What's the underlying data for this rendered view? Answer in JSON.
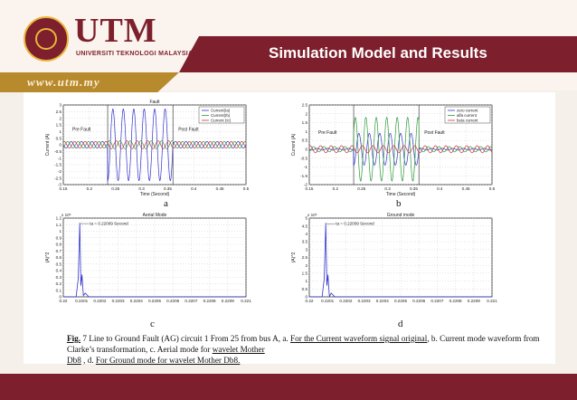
{
  "header": {
    "logo_text": "UTM",
    "logo_subtitle": "UNIVERSITI TEKNOLOGI MALAYSIA",
    "url": "www.utm.my",
    "slide_title": "Simulation Model and  Results"
  },
  "colors": {
    "maroon": "#7d1f2c",
    "gold": "#b88a2e",
    "blue": "#3333cc",
    "green": "#2e9a3a",
    "red": "#cc3333"
  },
  "subfigure_labels": [
    "a",
    "b",
    "c",
    "d"
  ],
  "caption": {
    "fig": "Fig.",
    "p1": " 7  Line to Ground  Fault (AG) circuit 1 From 25 from bus  A, a. ",
    "u1": "For the Current waveform signal original",
    "p2": ", b.      Current mode waveform from Clarke’s transformation, c. Aerial mode for ",
    "u2": "wavelet  Mother",
    "u3": "Db8",
    "p3": " , d. ",
    "u4": "For Ground mode for wavelet Mother Db8."
  },
  "chart_data": [
    {
      "type": "line",
      "id": "a",
      "title": "Fault",
      "xlabel": "Time (Second)",
      "ylabel": "Current (A)",
      "xlim": [
        0.15,
        0.5
      ],
      "ylim": [
        -3,
        3
      ],
      "xticks": [
        "0.15",
        "0.2",
        "0.25",
        "0.3",
        "0.35",
        "0.4",
        "0.45",
        "0.5"
      ],
      "yticks": [
        "-3",
        "-2.5",
        "-2",
        "-1.5",
        "-1",
        "-0.5",
        "0",
        "0.5",
        "1",
        "1.5",
        "2",
        "2.5",
        "3"
      ],
      "legend": [
        "Current(Ia)",
        "Current(Ib)",
        "Current (Ic)"
      ],
      "legend_position": "top-right",
      "annotations": [
        "Pre Fault",
        "Post Fault"
      ],
      "fault_window": [
        0.235,
        0.36
      ],
      "frequency_hz": 50,
      "series": [
        {
          "name": "Current(Ia)",
          "color": "#3333cc",
          "pre_amplitude": 0.25,
          "fault_amplitude": 2.7
        },
        {
          "name": "Current(Ib)",
          "color": "#2e9a3a",
          "pre_amplitude": 0.25,
          "fault_amplitude": 0.3
        },
        {
          "name": "Current (Ic)",
          "color": "#cc3333",
          "pre_amplitude": 0.25,
          "fault_amplitude": 0.3
        }
      ]
    },
    {
      "type": "line",
      "id": "b",
      "xlabel": "Time (Second)",
      "ylabel": "Current (A)",
      "xlim": [
        0.15,
        0.5
      ],
      "ylim": [
        -2,
        2.5
      ],
      "xticks": [
        "0.15",
        "0.2",
        "0.25",
        "0.3",
        "0.35",
        "0.4",
        "0.45",
        "0.5"
      ],
      "yticks": [
        "-2",
        "-1.5",
        "-1",
        "-0.5",
        "0",
        "0.5",
        "1",
        "1.5",
        "2",
        "2.5"
      ],
      "legend": [
        "zero current",
        "alfa current",
        "beta current"
      ],
      "legend_position": "top-right",
      "annotations": [
        "Pre Fault",
        "Post Fault"
      ],
      "fault_window": [
        0.235,
        0.36
      ],
      "frequency_hz": 50,
      "series": [
        {
          "name": "zero current",
          "color": "#3333cc",
          "pre_amplitude": 0.05,
          "fault_amplitude": 0.9
        },
        {
          "name": "alfa current",
          "color": "#2e9a3a",
          "pre_amplitude": 0.15,
          "fault_amplitude": 1.8
        },
        {
          "name": "beta current",
          "color": "#cc3333",
          "pre_amplitude": 0.2,
          "fault_amplitude": 0.2
        }
      ]
    },
    {
      "type": "line",
      "id": "c",
      "title": "Aerial Mode",
      "xlabel": "",
      "ylabel": "(A)^2",
      "y_exponent": "x 10⁵",
      "xlim": [
        0.22,
        0.221
      ],
      "ylim": [
        0,
        1.2
      ],
      "xticks": [
        "0.22",
        "0.2201",
        "0.2202",
        "0.2203",
        "0.2204",
        "0.2205",
        "0.2206",
        "0.2207",
        "0.2208",
        "0.2209",
        "0.221"
      ],
      "yticks": [
        "0",
        "0.1",
        "0.2",
        "0.3",
        "0.4",
        "0.5",
        "0.6",
        "0.7",
        "0.8",
        "0.9",
        "1",
        "1.1",
        "1.2"
      ],
      "annotation": "ta = 0.22009 Second",
      "series": [
        {
          "color": "#3333cc",
          "peak_x": 0.22009,
          "peak_y": 1.13
        }
      ]
    },
    {
      "type": "line",
      "id": "d",
      "title": "Ground mode",
      "xlabel": "",
      "ylabel": "(A)^2",
      "y_exponent": "x 10⁵",
      "xlim": [
        0.22,
        0.221
      ],
      "ylim": [
        0,
        5
      ],
      "xticks": [
        "0.22",
        "0.2201",
        "0.2202",
        "0.2203",
        "0.2204",
        "0.2205",
        "0.2206",
        "0.2207",
        "0.2208",
        "0.2209",
        "0.221"
      ],
      "yticks": [
        "0",
        "0.5",
        "1",
        "1.5",
        "2",
        "2.5",
        "3",
        "3.5",
        "4",
        "4.5",
        "5"
      ],
      "annotation": "ta = 0.22009 Second",
      "series": [
        {
          "color": "#3333cc",
          "peak_x": 0.22009,
          "peak_y": 4.7
        }
      ]
    }
  ]
}
